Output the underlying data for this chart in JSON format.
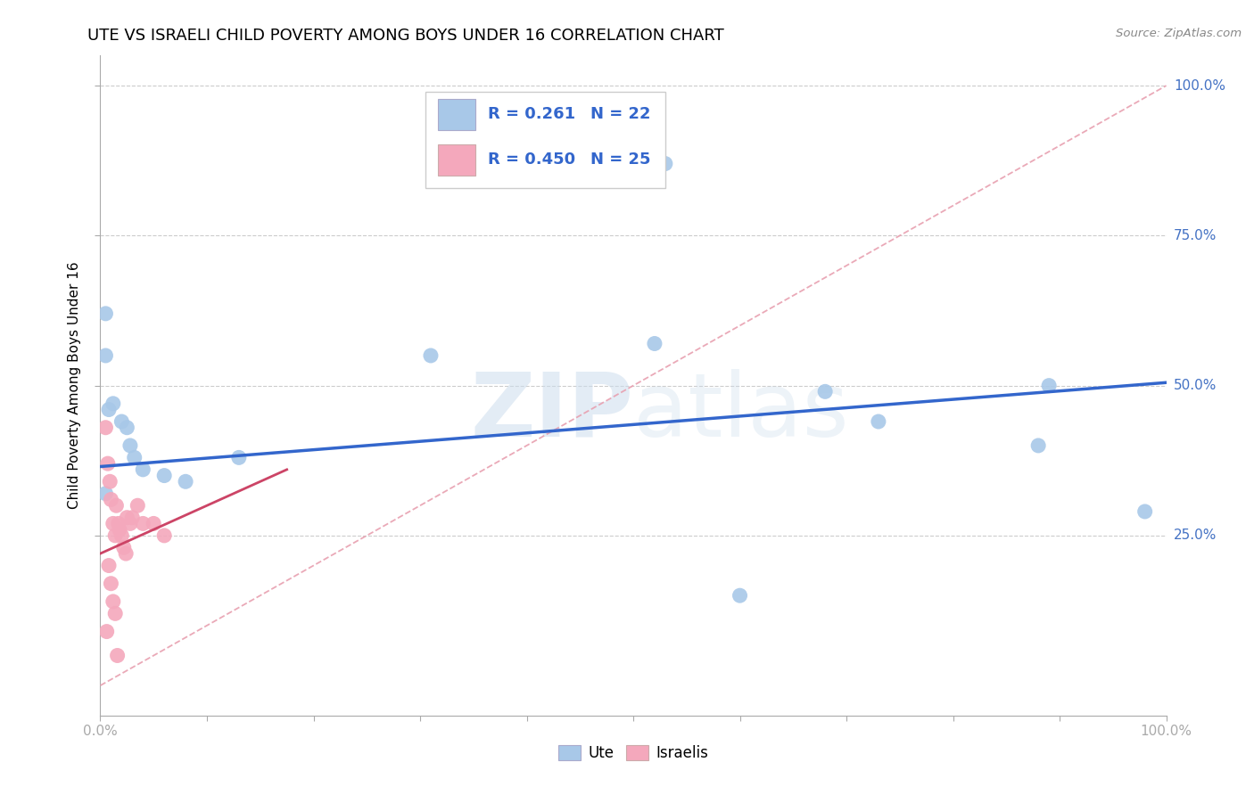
{
  "title": "UTE VS ISRAELI CHILD POVERTY AMONG BOYS UNDER 16 CORRELATION CHART",
  "source": "Source: ZipAtlas.com",
  "ylabel": "Child Poverty Among Boys Under 16",
  "xlim": [
    0,
    1
  ],
  "ylim": [
    -0.05,
    1.05
  ],
  "ute_R": "0.261",
  "ute_N": "22",
  "israeli_R": "0.450",
  "israeli_N": "25",
  "ute_color": "#a8c8e8",
  "israeli_color": "#f4a8bc",
  "ute_line_color": "#3366cc",
  "israeli_line_color": "#cc4466",
  "diagonal_color": "#e8a0b0",
  "watermark_zip": "ZIP",
  "watermark_atlas": "atlas",
  "ute_points": [
    [
      0.005,
      0.62
    ],
    [
      0.008,
      0.46
    ],
    [
      0.012,
      0.47
    ],
    [
      0.005,
      0.55
    ],
    [
      0.02,
      0.44
    ],
    [
      0.025,
      0.43
    ],
    [
      0.028,
      0.4
    ],
    [
      0.032,
      0.38
    ],
    [
      0.04,
      0.36
    ],
    [
      0.06,
      0.35
    ],
    [
      0.08,
      0.34
    ],
    [
      0.13,
      0.38
    ],
    [
      0.31,
      0.55
    ],
    [
      0.53,
      0.87
    ],
    [
      0.52,
      0.57
    ],
    [
      0.68,
      0.49
    ],
    [
      0.73,
      0.44
    ],
    [
      0.88,
      0.4
    ],
    [
      0.89,
      0.5
    ],
    [
      0.98,
      0.29
    ],
    [
      0.005,
      0.32
    ],
    [
      0.6,
      0.15
    ]
  ],
  "israeli_points": [
    [
      0.005,
      0.43
    ],
    [
      0.007,
      0.37
    ],
    [
      0.009,
      0.34
    ],
    [
      0.01,
      0.31
    ],
    [
      0.012,
      0.27
    ],
    [
      0.014,
      0.25
    ],
    [
      0.015,
      0.3
    ],
    [
      0.017,
      0.27
    ],
    [
      0.018,
      0.26
    ],
    [
      0.02,
      0.25
    ],
    [
      0.022,
      0.23
    ],
    [
      0.024,
      0.22
    ],
    [
      0.025,
      0.28
    ],
    [
      0.028,
      0.27
    ],
    [
      0.03,
      0.28
    ],
    [
      0.035,
      0.3
    ],
    [
      0.04,
      0.27
    ],
    [
      0.05,
      0.27
    ],
    [
      0.06,
      0.25
    ],
    [
      0.008,
      0.2
    ],
    [
      0.01,
      0.17
    ],
    [
      0.012,
      0.14
    ],
    [
      0.014,
      0.12
    ],
    [
      0.006,
      0.09
    ],
    [
      0.016,
      0.05
    ]
  ],
  "ute_line": [
    [
      0.0,
      0.365
    ],
    [
      1.0,
      0.505
    ]
  ],
  "israeli_line": [
    [
      0.0,
      0.22
    ],
    [
      0.175,
      0.36
    ]
  ],
  "ytick_positions": [
    0.25,
    0.5,
    0.75,
    1.0
  ],
  "ytick_labels": [
    "25.0%",
    "50.0%",
    "75.0%",
    "100.0%"
  ],
  "xtick_positions": [
    0.0,
    0.1,
    0.2,
    0.3,
    0.4,
    0.5,
    0.6,
    0.7,
    0.8,
    0.9,
    1.0
  ],
  "title_fontsize": 13,
  "label_fontsize": 11,
  "tick_fontsize": 11,
  "legend_fontsize": 13
}
